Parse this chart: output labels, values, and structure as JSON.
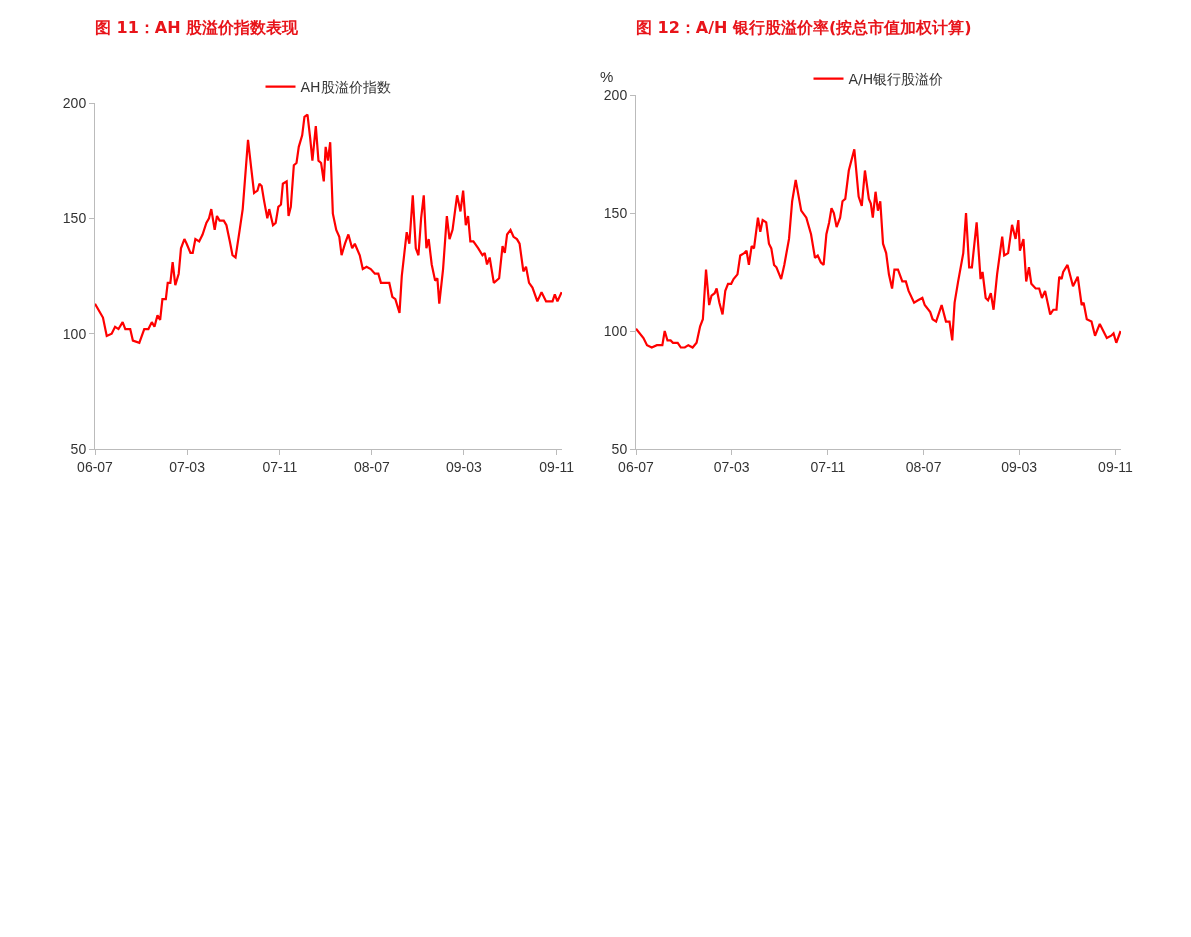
{
  "chart_data": [
    {
      "type": "line",
      "title": "图 11：AH 股溢价指数表现",
      "legend": "top",
      "grid": false,
      "ylim": [
        50,
        200
      ],
      "yticks": [
        50,
        100,
        150,
        200
      ],
      "xlim": [
        "2006-07-01",
        "2009-11-15"
      ],
      "xticks": [
        {
          "value": "2006-07-01",
          "label": "06-07"
        },
        {
          "value": "2007-03-01",
          "label": "07-03"
        },
        {
          "value": "2007-11-01",
          "label": "07-11"
        },
        {
          "value": "2008-07-01",
          "label": "08-07"
        },
        {
          "value": "2009-03-01",
          "label": "09-03"
        },
        {
          "value": "2009-11-01",
          "label": "09-11"
        }
      ],
      "series": [
        {
          "name": "AH股溢价指数",
          "color": "#ff0000",
          "x": [
            "2006-07-01",
            "2006-07-22",
            "2006-08-01",
            "2006-08-14",
            "2006-08-23",
            "2006-09-01",
            "2006-09-12",
            "2006-09-19",
            "2006-10-02",
            "2006-10-09",
            "2006-10-26",
            "2006-11-08",
            "2006-11-19",
            "2006-11-28",
            "2006-12-05",
            "2006-12-13",
            "2006-12-20",
            "2006-12-26",
            "2007-01-04",
            "2007-01-09",
            "2007-01-16",
            "2007-01-22",
            "2007-01-29",
            "2007-02-07",
            "2007-02-13",
            "2007-02-22",
            "2007-02-28",
            "2007-03-10",
            "2007-03-16",
            "2007-03-23",
            "2007-04-02",
            "2007-04-11",
            "2007-04-21",
            "2007-04-28",
            "2007-05-04",
            "2007-05-13",
            "2007-05-19",
            "2007-05-26",
            "2007-06-06",
            "2007-06-13",
            "2007-06-22",
            "2007-06-29",
            "2007-07-07",
            "2007-07-18",
            "2007-07-26",
            "2007-08-09",
            "2007-08-18",
            "2007-08-25",
            "2007-09-03",
            "2007-09-08",
            "2007-09-14",
            "2007-09-20",
            "2007-09-29",
            "2007-10-04",
            "2007-10-14",
            "2007-10-21",
            "2007-10-28",
            "2007-11-04",
            "2007-11-09",
            "2007-11-19",
            "2007-11-24",
            "2007-11-30",
            "2007-12-08",
            "2007-12-15",
            "2007-12-21",
            "2007-12-30",
            "2008-01-05",
            "2008-01-13",
            "2008-01-20",
            "2008-01-26",
            "2008-02-04",
            "2008-02-11",
            "2008-02-18",
            "2008-02-25",
            "2008-03-01",
            "2008-03-07",
            "2008-03-13",
            "2008-03-20",
            "2008-03-29",
            "2008-04-06",
            "2008-04-12",
            "2008-04-21",
            "2008-04-30",
            "2008-05-10",
            "2008-05-17",
            "2008-05-30",
            "2008-06-07",
            "2008-06-17",
            "2008-06-28",
            "2008-07-09",
            "2008-07-18",
            "2008-07-25",
            "2008-08-07",
            "2008-08-16",
            "2008-08-24",
            "2008-09-01",
            "2008-09-12",
            "2008-09-18",
            "2008-10-01",
            "2008-10-08",
            "2008-10-17",
            "2008-10-25",
            "2008-11-01",
            "2008-11-08",
            "2008-11-15",
            "2008-11-22",
            "2008-11-28",
            "2008-12-06",
            "2008-12-15",
            "2008-12-21",
            "2008-12-26",
            "2009-01-05",
            "2009-01-15",
            "2009-01-22",
            "2009-01-30",
            "2009-02-11",
            "2009-02-20",
            "2009-02-27",
            "2009-03-06",
            "2009-03-12",
            "2009-03-18",
            "2009-03-26",
            "2009-04-08",
            "2009-04-19",
            "2009-04-25",
            "2009-05-01",
            "2009-05-08",
            "2009-05-19",
            "2009-06-02",
            "2009-06-11",
            "2009-06-17",
            "2009-06-23",
            "2009-07-02",
            "2009-07-10",
            "2009-07-19",
            "2009-07-26",
            "2009-08-05",
            "2009-08-12",
            "2009-08-20",
            "2009-08-29",
            "2009-09-11",
            "2009-09-22",
            "2009-10-04",
            "2009-10-14",
            "2009-10-21",
            "2009-10-27",
            "2009-11-03",
            "2009-11-14"
          ],
          "values": [
            113,
            107,
            99,
            100,
            103,
            102,
            105,
            102,
            102,
            97,
            96,
            102,
            102,
            105,
            103,
            108,
            106,
            115,
            115,
            122,
            122,
            131,
            121,
            126,
            137,
            141,
            139,
            135,
            135,
            141,
            140,
            143,
            148,
            150,
            154,
            145,
            151,
            149,
            149,
            147,
            140,
            134,
            133,
            145,
            154,
            184,
            171,
            161,
            162,
            165,
            164,
            158,
            150,
            154,
            147,
            148,
            155,
            156,
            165,
            166,
            151,
            155,
            173,
            174,
            181,
            186,
            194,
            195,
            185,
            175,
            190,
            175,
            174,
            166,
            181,
            175,
            183,
            152,
            145,
            142,
            134,
            139,
            143,
            137,
            139,
            134,
            128,
            129,
            128,
            126,
            126,
            122,
            122,
            122,
            116,
            115,
            109,
            125,
            144,
            139,
            160,
            137,
            134,
            150,
            160,
            137,
            141,
            130,
            123,
            124,
            113,
            128,
            151,
            141,
            145,
            160,
            153,
            162,
            147,
            151,
            140,
            140,
            137,
            134,
            135,
            130,
            133,
            122,
            124,
            138,
            135,
            143,
            145,
            142,
            141,
            139,
            127,
            129,
            122,
            120,
            114,
            118,
            114,
            114,
            114,
            117,
            114,
            118
          ]
        }
      ]
    },
    {
      "type": "line",
      "title": "图 12：A/H 银行股溢价率(按总市值加权计算)",
      "ylabel": "%",
      "legend": "top",
      "grid": false,
      "ylim": [
        50,
        200
      ],
      "yticks": [
        50,
        100,
        150,
        200
      ],
      "xlim": [
        "2006-07-01",
        "2009-11-15"
      ],
      "xticks": [
        {
          "value": "2006-07-01",
          "label": "06-07"
        },
        {
          "value": "2007-03-01",
          "label": "07-03"
        },
        {
          "value": "2007-11-01",
          "label": "07-11"
        },
        {
          "value": "2008-07-01",
          "label": "08-07"
        },
        {
          "value": "2009-03-01",
          "label": "09-03"
        },
        {
          "value": "2009-11-01",
          "label": "09-11"
        }
      ],
      "series": [
        {
          "name": "A/H银行股溢价",
          "color": "#ff0000",
          "x": [
            "2006-07-01",
            "2006-07-20",
            "2006-07-29",
            "2006-08-10",
            "2006-08-23",
            "2006-09-06",
            "2006-09-12",
            "2006-09-19",
            "2006-09-27",
            "2006-10-03",
            "2006-10-15",
            "2006-10-23",
            "2006-11-02",
            "2006-11-11",
            "2006-11-22",
            "2006-12-02",
            "2006-12-11",
            "2006-12-18",
            "2006-12-26",
            "2007-01-03",
            "2007-01-09",
            "2007-01-17",
            "2007-01-22",
            "2007-01-29",
            "2007-02-06",
            "2007-02-13",
            "2007-02-20",
            "2007-02-28",
            "2007-03-06",
            "2007-03-16",
            "2007-03-23",
            "2007-04-02",
            "2007-04-08",
            "2007-04-14",
            "2007-04-21",
            "2007-04-27",
            "2007-05-07",
            "2007-05-13",
            "2007-05-19",
            "2007-05-28",
            "2007-06-04",
            "2007-06-10",
            "2007-06-17",
            "2007-06-23",
            "2007-07-05",
            "2007-07-13",
            "2007-07-25",
            "2007-08-02",
            "2007-08-11",
            "2007-08-25",
            "2007-09-07",
            "2007-09-19",
            "2007-09-29",
            "2007-10-06",
            "2007-10-14",
            "2007-10-21",
            "2007-10-28",
            "2007-11-04",
            "2007-11-10",
            "2007-11-16",
            "2007-11-23",
            "2007-12-02",
            "2007-12-08",
            "2007-12-15",
            "2007-12-24",
            "2008-01-07",
            "2008-01-18",
            "2008-01-26",
            "2008-02-03",
            "2008-02-13",
            "2008-02-18",
            "2008-02-23",
            "2008-03-01",
            "2008-03-07",
            "2008-03-13",
            "2008-03-20",
            "2008-03-28",
            "2008-04-04",
            "2008-04-12",
            "2008-04-18",
            "2008-04-27",
            "2008-05-08",
            "2008-05-17",
            "2008-05-24",
            "2008-06-07",
            "2008-06-17",
            "2008-06-28",
            "2008-07-04",
            "2008-07-18",
            "2008-07-24",
            "2008-08-02",
            "2008-08-16",
            "2008-08-27",
            "2008-09-05",
            "2008-09-12",
            "2008-09-18",
            "2008-09-27",
            "2008-10-10",
            "2008-10-17",
            "2008-10-25",
            "2008-11-01",
            "2008-11-13",
            "2008-11-23",
            "2008-11-28",
            "2008-12-06",
            "2008-12-12",
            "2008-12-19",
            "2008-12-26",
            "2009-01-04",
            "2009-01-17",
            "2009-01-22",
            "2009-02-01",
            "2009-02-11",
            "2009-02-20",
            "2009-02-27",
            "2009-03-03",
            "2009-03-12",
            "2009-03-19",
            "2009-03-26",
            "2009-04-01",
            "2009-04-12",
            "2009-04-21",
            "2009-04-28",
            "2009-05-06",
            "2009-05-19",
            "2009-05-27",
            "2009-06-04",
            "2009-06-11",
            "2009-06-17",
            "2009-06-21",
            "2009-07-02",
            "2009-07-16",
            "2009-07-28",
            "2009-08-07",
            "2009-08-12",
            "2009-08-20",
            "2009-09-01",
            "2009-09-10",
            "2009-09-22",
            "2009-10-10",
            "2009-10-21",
            "2009-10-27",
            "2009-11-03",
            "2009-11-14"
          ],
          "values": [
            101,
            97,
            94,
            93,
            94,
            94,
            100,
            96,
            96,
            95,
            95,
            93,
            93,
            94,
            93,
            95,
            102,
            105,
            126,
            111,
            115,
            116,
            118,
            112,
            107,
            117,
            120,
            120,
            122,
            124,
            132,
            133,
            134,
            128,
            136,
            135,
            148,
            142,
            147,
            146,
            137,
            135,
            128,
            127,
            122,
            128,
            139,
            155,
            164,
            151,
            148,
            141,
            131,
            132,
            129,
            128,
            141,
            146,
            152,
            150,
            144,
            148,
            155,
            156,
            168,
            177,
            157,
            153,
            168,
            156,
            154,
            148,
            159,
            151,
            155,
            137,
            133,
            124,
            118,
            126,
            126,
            121,
            121,
            117,
            112,
            113,
            114,
            111,
            108,
            105,
            104,
            111,
            104,
            104,
            96,
            112,
            121,
            133,
            150,
            127,
            127,
            146,
            122,
            125,
            114,
            113,
            116,
            109,
            124,
            140,
            132,
            133,
            145,
            139,
            147,
            134,
            139,
            121,
            127,
            120,
            118,
            118,
            114,
            117,
            107,
            109,
            109,
            123,
            122,
            125,
            128,
            119,
            123,
            111,
            112,
            105,
            104,
            98,
            103,
            97,
            98,
            99,
            95,
            100
          ]
        }
      ]
    }
  ]
}
